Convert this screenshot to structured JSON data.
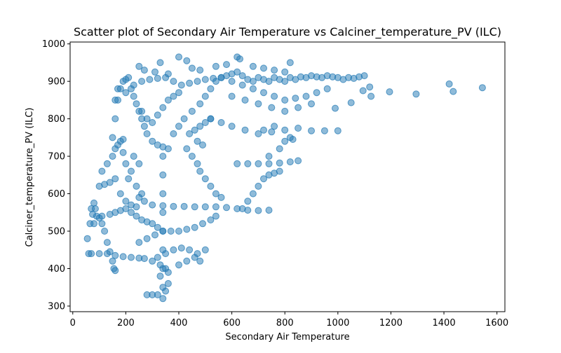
{
  "chart_data": {
    "type": "scatter",
    "title": "Scatter plot of Secondary Air Temperature vs Calciner_temperature_PV (ILC)",
    "xlabel": "Secondary Air Temperature",
    "ylabel": "Calciner_temperature_PV (ILC)",
    "xlim": [
      -10,
      1630
    ],
    "ylim": [
      285,
      1005
    ],
    "xticks": [
      0,
      200,
      400,
      600,
      800,
      1000,
      1200,
      1400,
      1600
    ],
    "yticks": [
      300,
      400,
      500,
      600,
      700,
      800,
      900,
      1000
    ],
    "marker_color": "#1f77b4",
    "marker_alpha": 0.5,
    "grid": false,
    "series": [
      {
        "points": [
          [
            55,
            480
          ],
          [
            60,
            440
          ],
          [
            65,
            520
          ],
          [
            70,
            560
          ],
          [
            80,
            575
          ],
          [
            75,
            545
          ],
          [
            85,
            560
          ],
          [
            90,
            540
          ],
          [
            100,
            535
          ],
          [
            110,
            520
          ],
          [
            120,
            500
          ],
          [
            130,
            470
          ],
          [
            140,
            445
          ],
          [
            150,
            420
          ],
          [
            155,
            400
          ],
          [
            160,
            395
          ],
          [
            70,
            440
          ],
          [
            100,
            440
          ],
          [
            130,
            440
          ],
          [
            160,
            435
          ],
          [
            190,
            432
          ],
          [
            220,
            430
          ],
          [
            250,
            428
          ],
          [
            270,
            427
          ],
          [
            80,
            520
          ],
          [
            110,
            540
          ],
          [
            140,
            545
          ],
          [
            160,
            550
          ],
          [
            180,
            555
          ],
          [
            200,
            560
          ],
          [
            100,
            620
          ],
          [
            120,
            625
          ],
          [
            140,
            630
          ],
          [
            160,
            640
          ],
          [
            180,
            600
          ],
          [
            200,
            580
          ],
          [
            220,
            570
          ],
          [
            240,
            565
          ],
          [
            110,
            660
          ],
          [
            130,
            680
          ],
          [
            150,
            700
          ],
          [
            160,
            720
          ],
          [
            170,
            730
          ],
          [
            180,
            740
          ],
          [
            190,
            745
          ],
          [
            150,
            750
          ],
          [
            160,
            800
          ],
          [
            170,
            850
          ],
          [
            180,
            880
          ],
          [
            190,
            900
          ],
          [
            200,
            905
          ],
          [
            210,
            910
          ],
          [
            220,
            880
          ],
          [
            230,
            860
          ],
          [
            240,
            840
          ],
          [
            250,
            820
          ],
          [
            260,
            800
          ],
          [
            270,
            780
          ],
          [
            280,
            760
          ],
          [
            300,
            740
          ],
          [
            320,
            730
          ],
          [
            340,
            725
          ],
          [
            360,
            720
          ],
          [
            380,
            760
          ],
          [
            400,
            780
          ],
          [
            420,
            800
          ],
          [
            450,
            820
          ],
          [
            480,
            840
          ],
          [
            500,
            860
          ],
          [
            520,
            880
          ],
          [
            540,
            900
          ],
          [
            560,
            910
          ],
          [
            580,
            915
          ],
          [
            600,
            920
          ],
          [
            620,
            925
          ],
          [
            640,
            915
          ],
          [
            660,
            905
          ],
          [
            680,
            900
          ],
          [
            700,
            910
          ],
          [
            720,
            905
          ],
          [
            740,
            900
          ],
          [
            760,
            910
          ],
          [
            780,
            905
          ],
          [
            800,
            900
          ],
          [
            820,
            910
          ],
          [
            840,
            905
          ],
          [
            860,
            912
          ],
          [
            880,
            910
          ],
          [
            900,
            915
          ],
          [
            920,
            912
          ],
          [
            940,
            910
          ],
          [
            960,
            915
          ],
          [
            980,
            912
          ],
          [
            1000,
            910
          ],
          [
            1020,
            905
          ],
          [
            1040,
            910
          ],
          [
            1060,
            908
          ],
          [
            1080,
            912
          ],
          [
            1100,
            915
          ],
          [
            600,
            860
          ],
          [
            650,
            850
          ],
          [
            700,
            840
          ],
          [
            750,
            830
          ],
          [
            800,
            820
          ],
          [
            850,
            830
          ],
          [
            900,
            840
          ],
          [
            520,
            800
          ],
          [
            560,
            790
          ],
          [
            600,
            780
          ],
          [
            650,
            770
          ],
          [
            700,
            760
          ],
          [
            750,
            765
          ],
          [
            800,
            770
          ],
          [
            850,
            775
          ],
          [
            620,
            965
          ],
          [
            630,
            960
          ],
          [
            430,
            955
          ],
          [
            400,
            965
          ],
          [
            330,
            950
          ],
          [
            480,
            930
          ],
          [
            820,
            950
          ],
          [
            1120,
            885
          ],
          [
            1125,
            860
          ],
          [
            1195,
            872
          ],
          [
            1295,
            866
          ],
          [
            1420,
            893
          ],
          [
            1435,
            873
          ],
          [
            1545,
            883
          ],
          [
            1095,
            875
          ],
          [
            1050,
            843
          ],
          [
            1000,
            768
          ],
          [
            950,
            768
          ],
          [
            900,
            768
          ],
          [
            990,
            828
          ],
          [
            340,
            700
          ],
          [
            340,
            650
          ],
          [
            340,
            600
          ],
          [
            340,
            550
          ],
          [
            340,
            500
          ],
          [
            340,
            450
          ],
          [
            340,
            400
          ],
          [
            340,
            350
          ],
          [
            340,
            320
          ],
          [
            320,
            330
          ],
          [
            350,
            340
          ],
          [
            300,
            330
          ],
          [
            280,
            330
          ],
          [
            360,
            360
          ],
          [
            330,
            380
          ],
          [
            360,
            390
          ],
          [
            300,
            420
          ],
          [
            320,
            430
          ],
          [
            350,
            440
          ],
          [
            380,
            450
          ],
          [
            410,
            455
          ],
          [
            440,
            450
          ],
          [
            470,
            440
          ],
          [
            500,
            450
          ],
          [
            400,
            410
          ],
          [
            430,
            420
          ],
          [
            460,
            430
          ],
          [
            480,
            420
          ],
          [
            350,
            400
          ],
          [
            330,
            410
          ],
          [
            250,
            470
          ],
          [
            280,
            480
          ],
          [
            310,
            490
          ],
          [
            340,
            500
          ],
          [
            370,
            500
          ],
          [
            400,
            500
          ],
          [
            430,
            505
          ],
          [
            460,
            510
          ],
          [
            490,
            520
          ],
          [
            520,
            530
          ],
          [
            540,
            540
          ],
          [
            300,
            570
          ],
          [
            340,
            568
          ],
          [
            380,
            566
          ],
          [
            420,
            566
          ],
          [
            460,
            565
          ],
          [
            500,
            565
          ],
          [
            540,
            565
          ],
          [
            580,
            563
          ],
          [
            620,
            560
          ],
          [
            660,
            556
          ],
          [
            700,
            555
          ],
          [
            740,
            556
          ],
          [
            220,
            550
          ],
          [
            240,
            540
          ],
          [
            260,
            530
          ],
          [
            280,
            525
          ],
          [
            300,
            520
          ],
          [
            320,
            510
          ],
          [
            250,
            590
          ],
          [
            270,
            580
          ],
          [
            640,
            560
          ],
          [
            660,
            580
          ],
          [
            680,
            600
          ],
          [
            700,
            620
          ],
          [
            720,
            640
          ],
          [
            740,
            650
          ],
          [
            760,
            655
          ],
          [
            780,
            660
          ],
          [
            620,
            680
          ],
          [
            660,
            680
          ],
          [
            700,
            680
          ],
          [
            740,
            680
          ],
          [
            780,
            682
          ],
          [
            820,
            685
          ],
          [
            850,
            688
          ],
          [
            740,
            700
          ],
          [
            780,
            720
          ],
          [
            800,
            740
          ],
          [
            820,
            750
          ],
          [
            830,
            745
          ],
          [
            760,
            780
          ],
          [
            720,
            770
          ],
          [
            430,
            720
          ],
          [
            450,
            700
          ],
          [
            470,
            680
          ],
          [
            480,
            660
          ],
          [
            500,
            640
          ],
          [
            520,
            620
          ],
          [
            540,
            600
          ],
          [
            560,
            590
          ],
          [
            440,
            760
          ],
          [
            460,
            770
          ],
          [
            480,
            780
          ],
          [
            500,
            790
          ],
          [
            520,
            800
          ],
          [
            470,
            740
          ],
          [
            490,
            730
          ],
          [
            260,
            820
          ],
          [
            280,
            800
          ],
          [
            300,
            790
          ],
          [
            320,
            810
          ],
          [
            340,
            830
          ],
          [
            360,
            850
          ],
          [
            380,
            860
          ],
          [
            400,
            870
          ],
          [
            230,
            700
          ],
          [
            250,
            680
          ],
          [
            220,
            660
          ],
          [
            240,
            620
          ],
          [
            260,
            600
          ],
          [
            210,
            640
          ],
          [
            200,
            680
          ],
          [
            190,
            710
          ],
          [
            160,
            850
          ],
          [
            170,
            880
          ],
          [
            200,
            870
          ],
          [
            230,
            890
          ],
          [
            260,
            900
          ],
          [
            290,
            905
          ],
          [
            320,
            908
          ],
          [
            350,
            910
          ],
          [
            380,
            900
          ],
          [
            410,
            890
          ],
          [
            440,
            895
          ],
          [
            470,
            900
          ],
          [
            500,
            905
          ],
          [
            530,
            908
          ],
          [
            560,
            910
          ],
          [
            600,
            900
          ],
          [
            640,
            890
          ],
          [
            680,
            880
          ],
          [
            720,
            870
          ],
          [
            760,
            860
          ],
          [
            800,
            850
          ],
          [
            840,
            855
          ],
          [
            880,
            860
          ],
          [
            920,
            870
          ],
          [
            960,
            880
          ],
          [
            250,
            940
          ],
          [
            270,
            930
          ],
          [
            310,
            925
          ],
          [
            360,
            920
          ],
          [
            450,
            935
          ],
          [
            540,
            940
          ],
          [
            580,
            945
          ],
          [
            680,
            940
          ],
          [
            720,
            935
          ],
          [
            760,
            930
          ],
          [
            800,
            925
          ]
        ]
      }
    ]
  }
}
